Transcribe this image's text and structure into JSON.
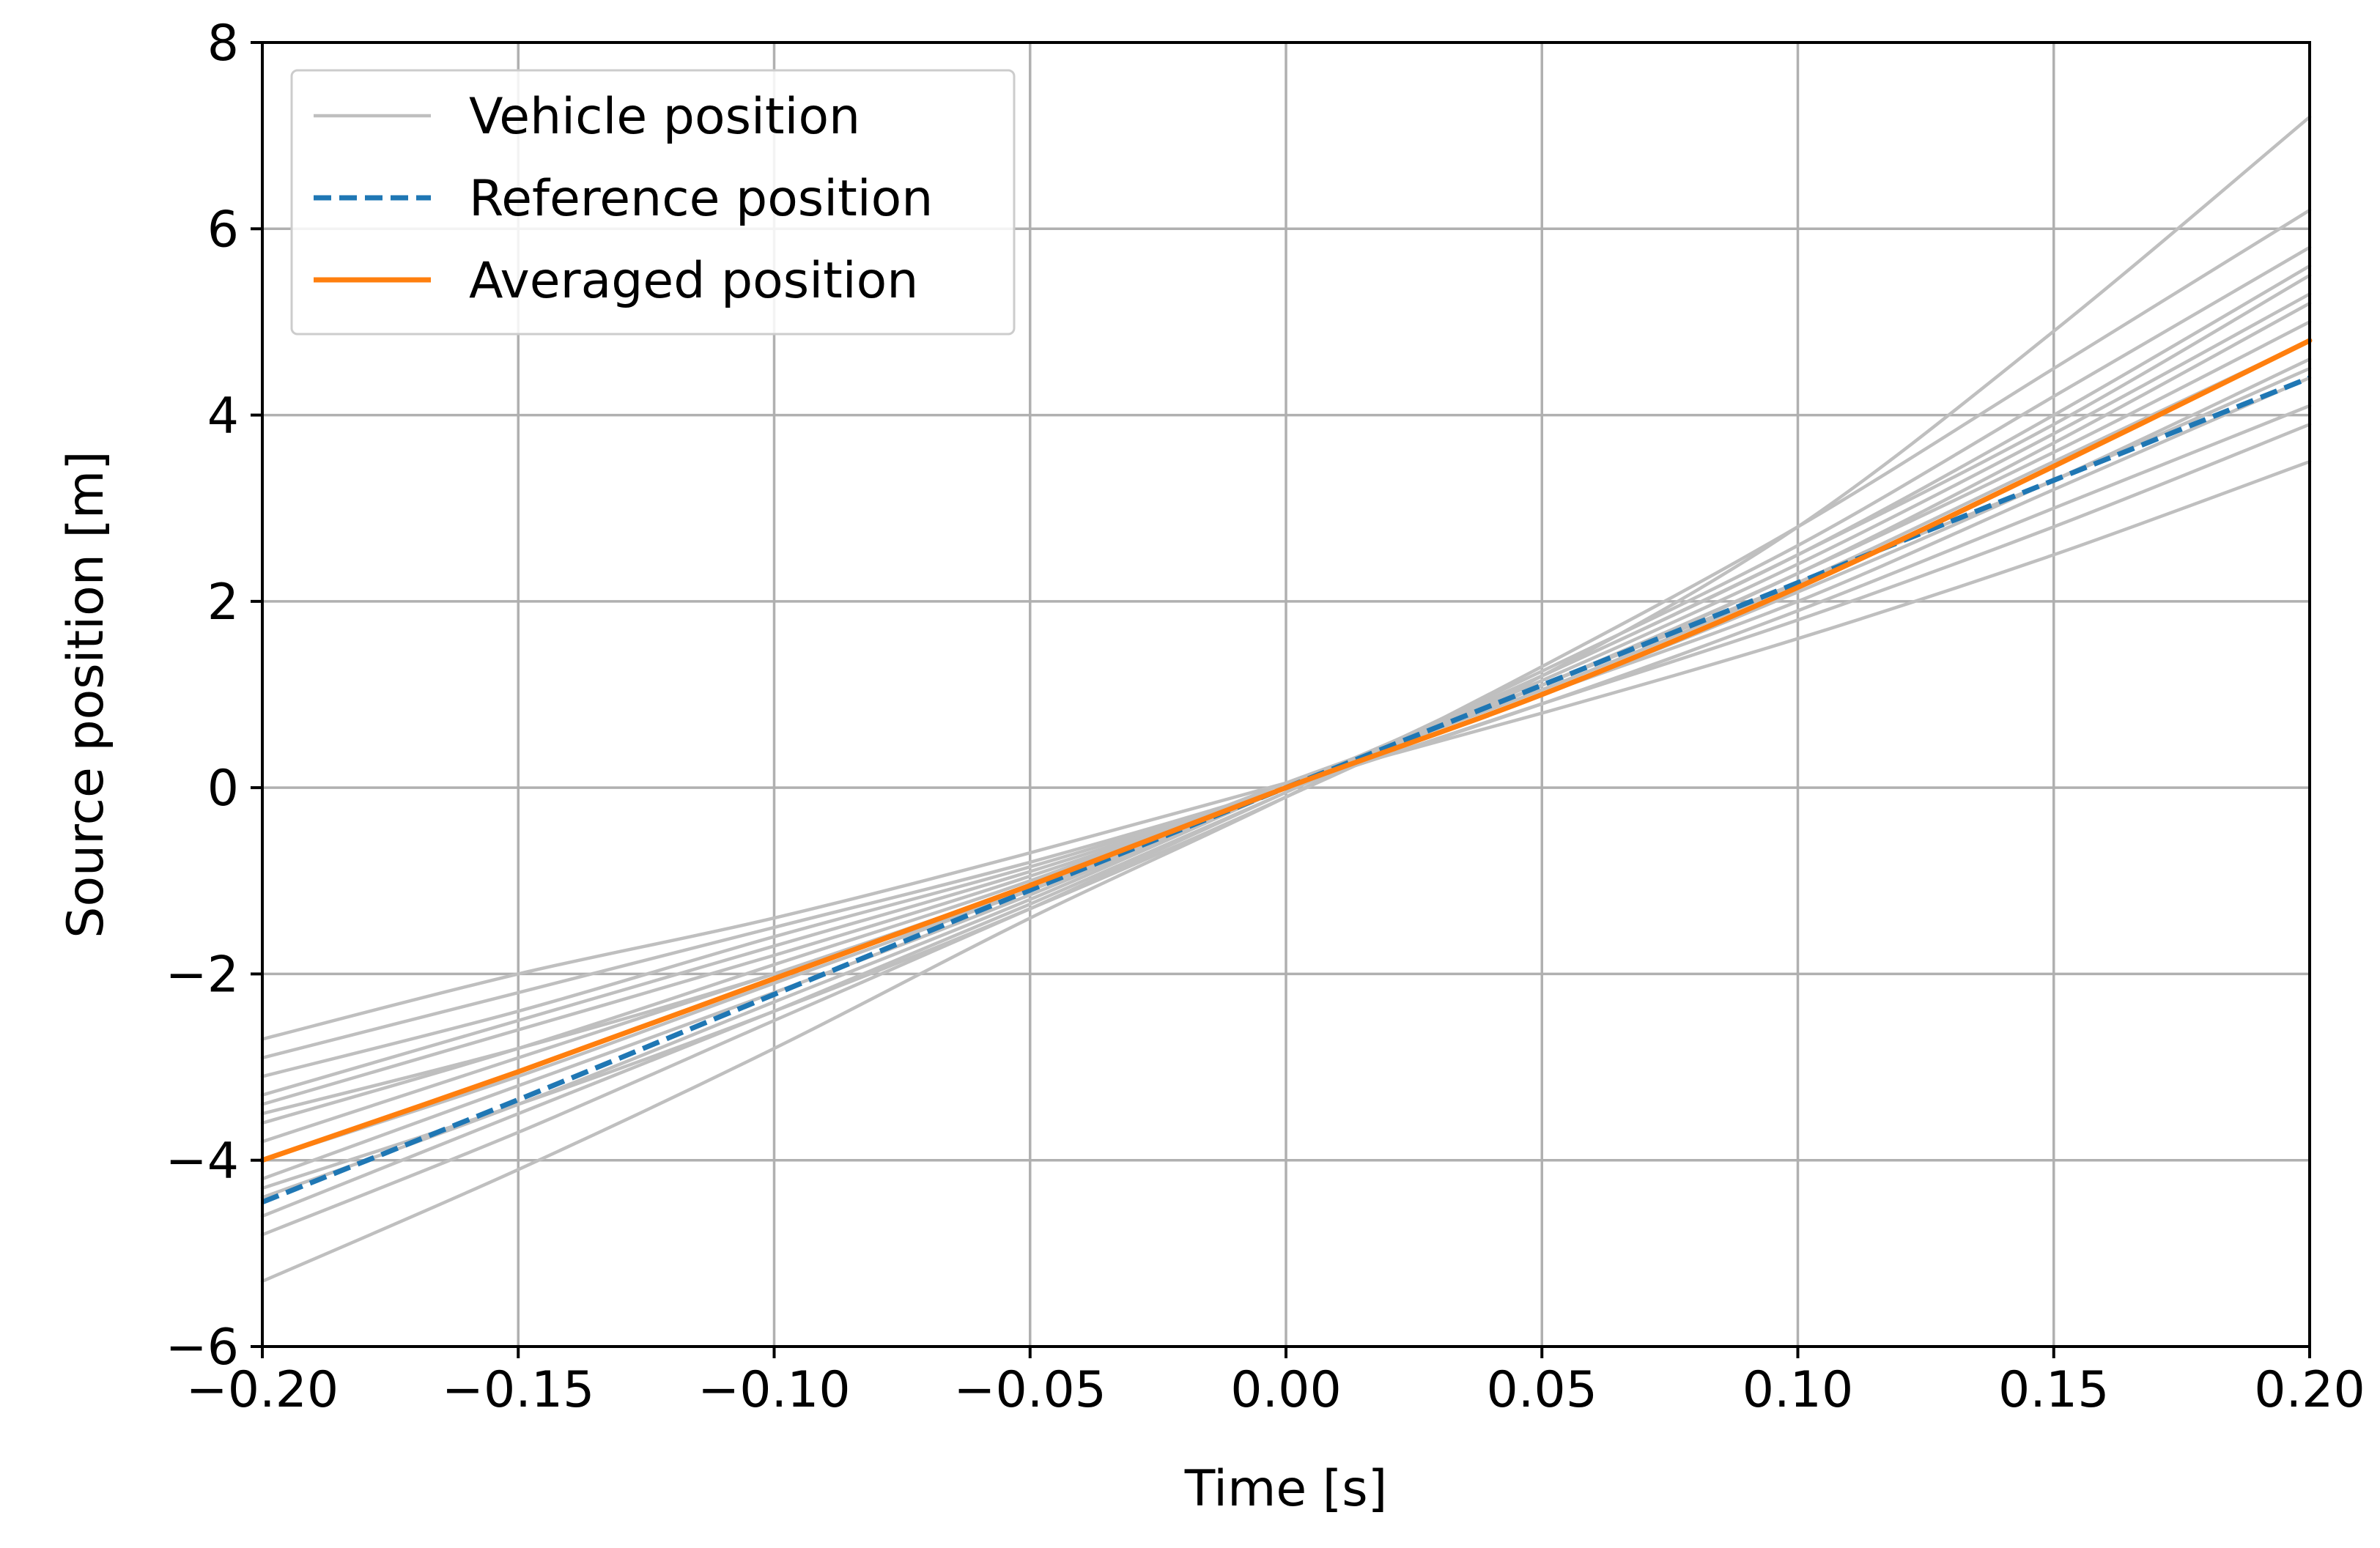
{
  "chart_data": {
    "type": "line",
    "title": "",
    "xlabel": "Time [s]",
    "ylabel": "Source position [m]",
    "xlim": [
      -0.2,
      0.2
    ],
    "ylim": [
      -6,
      8
    ],
    "xticks": [
      -0.2,
      -0.15,
      -0.1,
      -0.05,
      0.0,
      0.05,
      0.1,
      0.15,
      0.2
    ],
    "xtick_labels": [
      "−0.20",
      "−0.15",
      "−0.10",
      "−0.05",
      "0.00",
      "0.05",
      "0.10",
      "0.15",
      "0.20"
    ],
    "yticks": [
      -6,
      -4,
      -2,
      0,
      2,
      4,
      6,
      8
    ],
    "ytick_labels": [
      "−6",
      "−4",
      "−2",
      "0",
      "2",
      "4",
      "6",
      "8"
    ],
    "grid": true,
    "legend_position": "top-left",
    "x": [
      -0.2,
      -0.15,
      -0.1,
      -0.05,
      0.0,
      0.05,
      0.1,
      0.15,
      0.2
    ],
    "series": [
      {
        "name": "Vehicle position",
        "role": "ensemble",
        "color": "#bfbfbf",
        "style": "solid",
        "values": [
          -2.7,
          -2.0,
          -1.4,
          -0.7,
          0.05,
          0.8,
          1.6,
          2.5,
          3.5
        ]
      },
      {
        "name": "Vehicle position",
        "role": "ensemble",
        "color": "#bfbfbf",
        "style": "solid",
        "values": [
          -2.9,
          -2.2,
          -1.5,
          -0.8,
          0.0,
          0.9,
          1.8,
          2.8,
          3.9
        ]
      },
      {
        "name": "Vehicle position",
        "role": "ensemble",
        "color": "#bfbfbf",
        "style": "solid",
        "values": [
          -3.1,
          -2.4,
          -1.6,
          -0.85,
          0.0,
          0.9,
          1.9,
          3.0,
          4.1
        ]
      },
      {
        "name": "Vehicle position",
        "role": "ensemble",
        "color": "#bfbfbf",
        "style": "solid",
        "values": [
          -3.3,
          -2.5,
          -1.7,
          -0.9,
          0.0,
          1.0,
          2.0,
          3.2,
          4.4
        ]
      },
      {
        "name": "Vehicle position",
        "role": "ensemble",
        "color": "#bfbfbf",
        "style": "solid",
        "values": [
          -3.4,
          -2.6,
          -1.8,
          -0.95,
          0.0,
          1.0,
          2.1,
          3.3,
          4.6
        ]
      },
      {
        "name": "Vehicle position",
        "role": "ensemble",
        "color": "#bfbfbf",
        "style": "solid",
        "values": [
          -3.6,
          -2.8,
          -1.9,
          -1.0,
          0.05,
          1.05,
          2.2,
          3.5,
          4.8
        ]
      },
      {
        "name": "Vehicle position",
        "role": "ensemble",
        "color": "#bfbfbf",
        "style": "solid",
        "values": [
          -3.8,
          -2.9,
          -2.0,
          -1.05,
          0.0,
          1.1,
          2.3,
          3.6,
          5.0
        ]
      },
      {
        "name": "Vehicle position",
        "role": "ensemble",
        "color": "#bfbfbf",
        "style": "solid",
        "values": [
          -4.0,
          -3.1,
          -2.1,
          -1.1,
          0.0,
          1.1,
          2.3,
          3.7,
          5.2
        ]
      },
      {
        "name": "Vehicle position",
        "role": "ensemble",
        "color": "#bfbfbf",
        "style": "solid",
        "values": [
          -4.2,
          -3.2,
          -2.2,
          -1.15,
          0.0,
          1.15,
          2.4,
          3.8,
          5.3
        ]
      },
      {
        "name": "Vehicle position",
        "role": "ensemble",
        "color": "#bfbfbf",
        "style": "solid",
        "values": [
          -4.4,
          -3.4,
          -2.3,
          -1.2,
          0.0,
          1.2,
          2.5,
          3.9,
          5.5
        ]
      },
      {
        "name": "Vehicle position",
        "role": "ensemble",
        "color": "#bfbfbf",
        "style": "solid",
        "values": [
          -4.6,
          -3.5,
          -2.4,
          -1.25,
          -0.05,
          1.2,
          2.5,
          4.0,
          5.6
        ]
      },
      {
        "name": "Vehicle position",
        "role": "ensemble",
        "color": "#bfbfbf",
        "style": "solid",
        "values": [
          -4.8,
          -3.7,
          -2.5,
          -1.3,
          -0.05,
          1.25,
          2.6,
          4.2,
          5.8
        ]
      },
      {
        "name": "Vehicle position",
        "role": "ensemble",
        "color": "#bfbfbf",
        "style": "solid",
        "values": [
          -5.3,
          -4.1,
          -2.8,
          -1.4,
          -0.1,
          1.3,
          2.8,
          4.5,
          6.2
        ]
      },
      {
        "name": "Vehicle position",
        "role": "ensemble",
        "color": "#bfbfbf",
        "style": "solid",
        "values": [
          -4.3,
          -3.4,
          -2.4,
          -1.3,
          -0.1,
          1.2,
          2.8,
          4.9,
          7.2
        ]
      },
      {
        "name": "Vehicle position",
        "role": "ensemble",
        "color": "#bfbfbf",
        "style": "solid",
        "values": [
          -3.5,
          -2.8,
          -2.0,
          -1.1,
          0.0,
          1.1,
          2.2,
          3.3,
          4.5
        ]
      },
      {
        "name": "Reference position",
        "role": "reference",
        "color": "#1f77b4",
        "style": "dashed",
        "values": [
          -4.45,
          -3.35,
          -2.22,
          -1.1,
          0.0,
          1.1,
          2.2,
          3.3,
          4.4
        ]
      },
      {
        "name": "Averaged position",
        "role": "average",
        "color": "#ff7f0e",
        "style": "solid",
        "values": [
          -4.0,
          -3.05,
          -2.05,
          -1.05,
          0.0,
          1.0,
          2.15,
          3.45,
          4.8
        ]
      }
    ],
    "legend": [
      {
        "label": "Vehicle position",
        "color": "#bfbfbf",
        "style": "solid"
      },
      {
        "label": "Reference position",
        "color": "#1f77b4",
        "style": "dashed"
      },
      {
        "label": "Averaged position",
        "color": "#ff7f0e",
        "style": "solid"
      }
    ]
  }
}
